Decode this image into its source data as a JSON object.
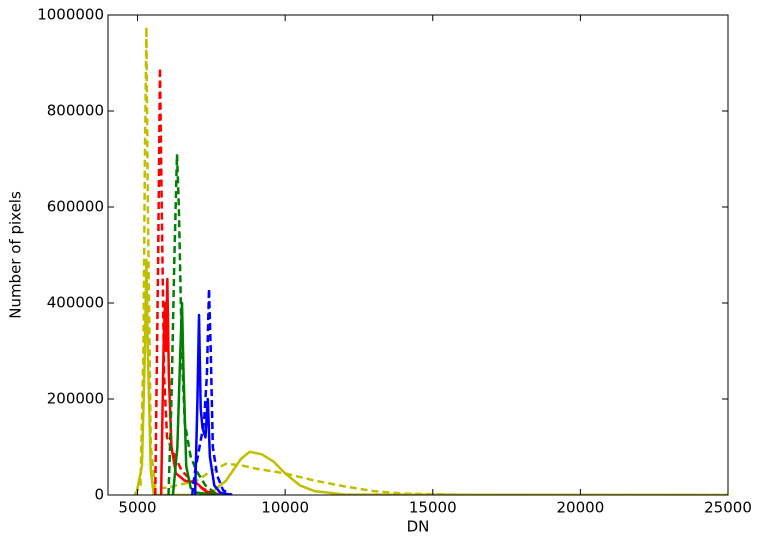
{
  "chart_data": {
    "type": "line",
    "x_label": "DN",
    "y_label": "Number of pixels",
    "xlim": [
      4000,
      25000
    ],
    "xticks": [
      5000,
      10000,
      15000,
      20000,
      25000
    ],
    "ylim": [
      0,
      1000000
    ],
    "yticks": [
      0,
      200000,
      400000,
      600000,
      800000,
      1000000
    ],
    "grid": false,
    "series": [
      {
        "color": "#bfbf00",
        "style": "dashed",
        "x": [
          4900,
          5100,
          5200,
          5250,
          5300,
          5350,
          5450,
          5600,
          6000,
          7000,
          7500,
          8000,
          8500,
          9000,
          10000,
          11000,
          12000,
          13000,
          14000,
          16000,
          25000
        ],
        "values": [
          0,
          20000,
          300000,
          700000,
          975000,
          600000,
          100000,
          15000,
          15000,
          30000,
          50000,
          65000,
          62000,
          55000,
          45000,
          30000,
          18000,
          8000,
          3000,
          500,
          0
        ]
      },
      {
        "color": "#bfbf00",
        "style": "solid",
        "x": [
          4950,
          5150,
          5250,
          5300,
          5350,
          5450,
          5550,
          7000,
          7500,
          8000,
          8500,
          8800,
          9200,
          9600,
          10000,
          10500,
          11000,
          12000,
          25000
        ],
        "values": [
          0,
          60000,
          300000,
          490000,
          300000,
          50000,
          0,
          0,
          5000,
          30000,
          75000,
          90000,
          85000,
          70000,
          45000,
          20000,
          8000,
          1000,
          0
        ]
      },
      {
        "color": "#ff0000",
        "style": "dashed",
        "x": [
          5600,
          5700,
          5760,
          5820,
          5900,
          6000,
          6200,
          6500,
          7000,
          7500,
          8000
        ],
        "values": [
          0,
          500000,
          890000,
          600000,
          250000,
          120000,
          90000,
          50000,
          20000,
          5000,
          0
        ]
      },
      {
        "color": "#ff0000",
        "style": "solid",
        "x": [
          5800,
          5880,
          5930,
          5970,
          6010,
          6060,
          6150,
          6300,
          6600,
          7000,
          7300,
          7700,
          8200
        ],
        "values": [
          0,
          300000,
          400000,
          300000,
          450000,
          250000,
          100000,
          45000,
          30000,
          25000,
          8000,
          2000,
          0
        ]
      },
      {
        "color": "#008000",
        "style": "dashed",
        "x": [
          6050,
          6150,
          6250,
          6337,
          6400,
          6500,
          6600,
          6800,
          7000,
          7300,
          7600,
          8000
        ],
        "values": [
          0,
          200000,
          500000,
          710000,
          600000,
          300000,
          150000,
          80000,
          50000,
          20000,
          5000,
          0
        ]
      },
      {
        "color": "#008000",
        "style": "solid",
        "x": [
          6200,
          6350,
          6450,
          6507,
          6560,
          6650,
          6800,
          7000,
          7500,
          8000
        ],
        "values": [
          0,
          100000,
          300000,
          400000,
          250000,
          60000,
          15000,
          5000,
          1000,
          0
        ]
      },
      {
        "color": "#0000ff",
        "style": "solid",
        "x": [
          6950,
          7030,
          7083,
          7140,
          7200,
          7300,
          7380,
          7450,
          7600,
          7800,
          8200
        ],
        "values": [
          0,
          200000,
          375000,
          180000,
          140000,
          120000,
          200000,
          80000,
          20000,
          5000,
          0
        ]
      },
      {
        "color": "#0000ff",
        "style": "dashed",
        "x": [
          6850,
          6950,
          7100,
          7250,
          7350,
          7421,
          7480,
          7550,
          7700,
          7900,
          8200
        ],
        "values": [
          0,
          50000,
          100000,
          150000,
          250000,
          430000,
          300000,
          100000,
          40000,
          10000,
          0
        ]
      }
    ]
  }
}
